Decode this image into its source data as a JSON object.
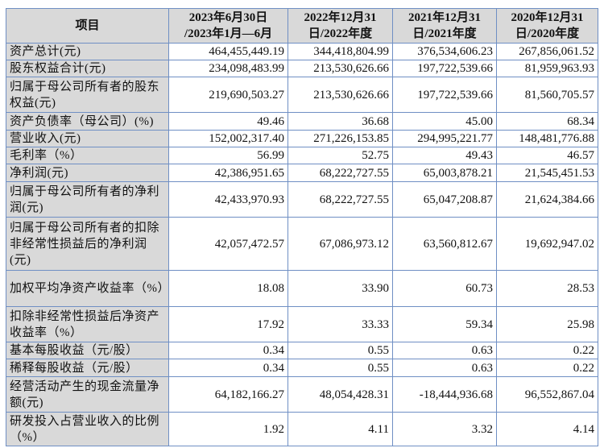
{
  "table": {
    "headers": [
      "项目",
      "2023年6月30日\n/2023年1月—6月",
      "2022年12月31\n日/2022年度",
      "2021年12月31\n日/2021年度",
      "2020年12月31\n日/2020年度"
    ],
    "rows": [
      {
        "label": "资产总计(元)",
        "values": [
          "464,455,449.19",
          "344,418,804.99",
          "376,534,606.23",
          "267,856,061.52"
        ]
      },
      {
        "label": "股东权益合计(元)",
        "values": [
          "234,098,483.99",
          "213,530,626.66",
          "197,722,539.66",
          "81,959,963.93"
        ]
      },
      {
        "label": "归属于母公司所有者的股东权益(元)",
        "values": [
          "219,690,503.27",
          "213,530,626.66",
          "197,722,539.66",
          "81,560,705.57"
        ]
      },
      {
        "label": "资产负债率（母公司）(%)",
        "values": [
          "49.46",
          "36.68",
          "45.00",
          "68.34"
        ]
      },
      {
        "label": "营业收入(元)",
        "values": [
          "152,002,317.40",
          "271,226,153.85",
          "294,995,221.77",
          "148,481,776.88"
        ]
      },
      {
        "label": "毛利率（%）",
        "values": [
          "56.99",
          "52.75",
          "49.43",
          "46.57"
        ]
      },
      {
        "label": "净利润(元)",
        "values": [
          "42,386,951.65",
          "68,222,727.55",
          "65,003,878.21",
          "21,545,451.53"
        ]
      },
      {
        "label": "归属于母公司所有者的净利润(元)",
        "values": [
          "42,433,970.93",
          "68,222,727.55",
          "65,047,208.87",
          "21,624,384.66"
        ]
      },
      {
        "label": "归属于母公司所有者的扣除非经常性损益后的净利润(元)",
        "values": [
          "42,057,472.57",
          "67,086,973.12",
          "63,560,812.67",
          "19,692,947.02"
        ]
      },
      {
        "label": "加权平均净资产收益率（%）",
        "values": [
          "18.08",
          "33.90",
          "60.73",
          "28.53"
        ]
      },
      {
        "label": "扣除非经常性损益后净资产收益率（%）",
        "values": [
          "17.92",
          "33.33",
          "59.34",
          "25.98"
        ]
      },
      {
        "label": "基本每股收益（元/股）",
        "values": [
          "0.34",
          "0.55",
          "0.63",
          "0.22"
        ]
      },
      {
        "label": "稀释每股收益（元/股）",
        "values": [
          "0.34",
          "0.55",
          "0.63",
          "0.22"
        ]
      },
      {
        "label": "经营活动产生的现金流量净额(元)",
        "values": [
          "64,182,166.27",
          "48,054,428.31",
          "-18,444,936.68",
          "96,552,867.04"
        ]
      },
      {
        "label": "研发投入占营业收入的比例（%）",
        "values": [
          "1.92",
          "4.11",
          "3.32",
          "4.14"
        ]
      }
    ]
  },
  "colors": {
    "border": "#6f8fc4",
    "label_bg": "#d9d9d9"
  }
}
